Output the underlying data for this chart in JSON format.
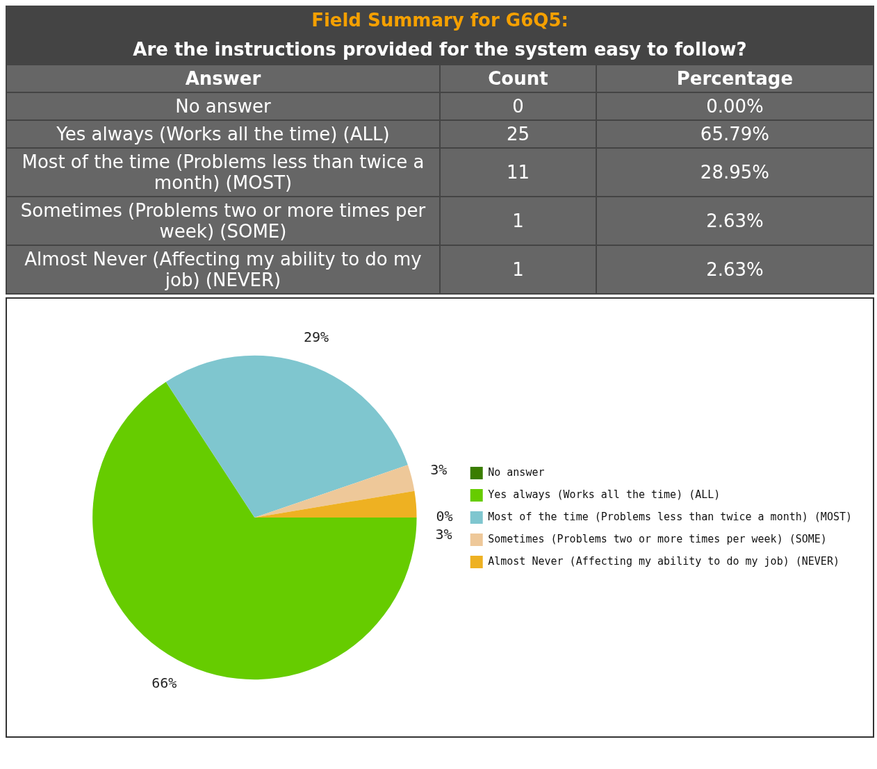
{
  "chart_data": [
    {
      "type": "other",
      "title": "Field Summary for G6Q5:",
      "subtitle": "Are the instructions provided for the system easy to follow?",
      "xlabel": "Answer",
      "categories": [
        "No answer",
        "Yes always (Works all the time) (ALL)",
        "Most of the time (Problems less than twice a month) (MOST)",
        "Sometimes (Problems two or more times per week) (SOME)",
        "Almost Never (Affecting my ability to do my job) (NEVER)"
      ],
      "data_labels": true,
      "series": [
        {
          "name": "Count",
          "values": [
            0,
            25,
            11,
            1,
            1
          ]
        },
        {
          "name": "Percentage",
          "values": [
            0.0,
            65.79,
            28.95,
            2.63,
            2.63
          ],
          "value_labels": [
            "0.00%",
            "65.79%",
            "28.95%",
            "2.63%",
            "2.63%"
          ]
        }
      ]
    },
    {
      "type": "pie",
      "categories": [
        "No answer",
        "Yes always (Works all the time) (ALL)",
        "Most of the time (Problems less than twice a month) (MOST)",
        "Sometimes (Problems two or more times per week) (SOME)",
        "Almost Never (Affecting my ability to do my job) (NEVER)"
      ],
      "values": [
        0.0,
        65.79,
        28.95,
        2.63,
        2.63
      ],
      "value_labels": [
        "0%",
        "66%",
        "29%",
        "3%",
        "3%"
      ],
      "colors": [
        "#3a7d00",
        "#66cc00",
        "#7fc6cf",
        "#eec899",
        "#eeb122"
      ],
      "legend": "right"
    }
  ]
}
